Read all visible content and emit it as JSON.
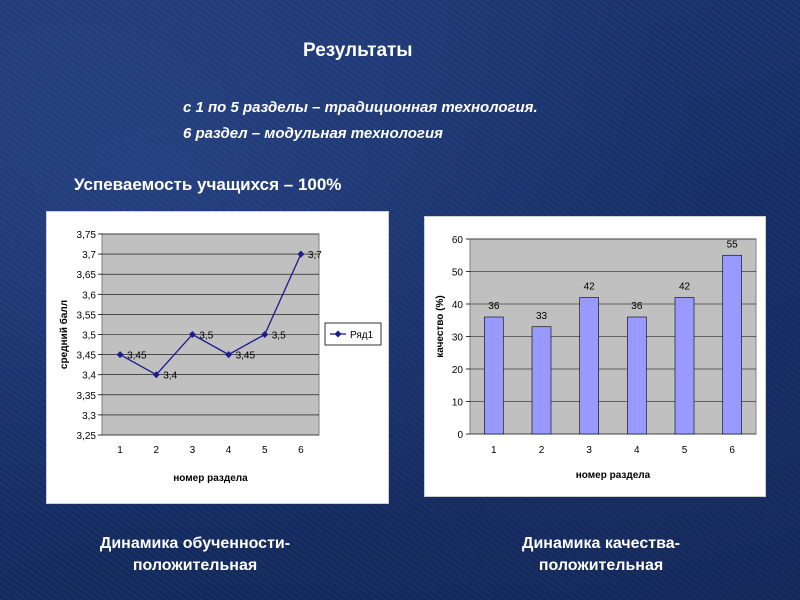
{
  "slide": {
    "title": "Результаты",
    "line1": "с 1 по 5 разделы – традиционная технология.",
    "line2": "6 раздел – модульная технология",
    "performance": "Успеваемость учащихся – 100%",
    "caption_left_1": "Динамика обученности-",
    "caption_left_2": "положительная",
    "caption_right_1": "Динамика качества-",
    "caption_right_2": "положительная"
  },
  "chart_data": [
    {
      "type": "line",
      "x": [
        1,
        2,
        3,
        4,
        5,
        6
      ],
      "categories": [
        "1",
        "2",
        "3",
        "4",
        "5",
        "6"
      ],
      "series": [
        {
          "name": "Ряд1",
          "values": [
            3.45,
            3.4,
            3.5,
            3.45,
            3.5,
            3.7
          ],
          "color": "#1c1c8c"
        }
      ],
      "data_labels": [
        "3,45",
        "3,4",
        "3,5",
        "3,45",
        "3,5",
        "3,7"
      ],
      "xlabel": "номер раздела",
      "ylabel": "средний балл",
      "ylim": [
        3.25,
        3.75
      ],
      "yticks": [
        "3,25",
        "3,3",
        "3,35",
        "3,4",
        "3,45",
        "3,5",
        "3,55",
        "3,6",
        "3,65",
        "3,7",
        "3,75"
      ],
      "grid": true,
      "legend": "right",
      "plot_bg": "#c0c0c0"
    },
    {
      "type": "bar",
      "categories": [
        "1",
        "2",
        "3",
        "4",
        "5",
        "6"
      ],
      "values": [
        36,
        33,
        42,
        36,
        42,
        55
      ],
      "data_labels": [
        "36",
        "33",
        "42",
        "36",
        "42",
        "55"
      ],
      "xlabel": "номер раздела",
      "ylabel": "качество (%)",
      "ylim": [
        0,
        60
      ],
      "yticks": [
        "0",
        "10",
        "20",
        "30",
        "40",
        "50",
        "60"
      ],
      "grid": true,
      "bar_color": "#9999ff",
      "plot_bg": "#c0c0c0"
    }
  ]
}
